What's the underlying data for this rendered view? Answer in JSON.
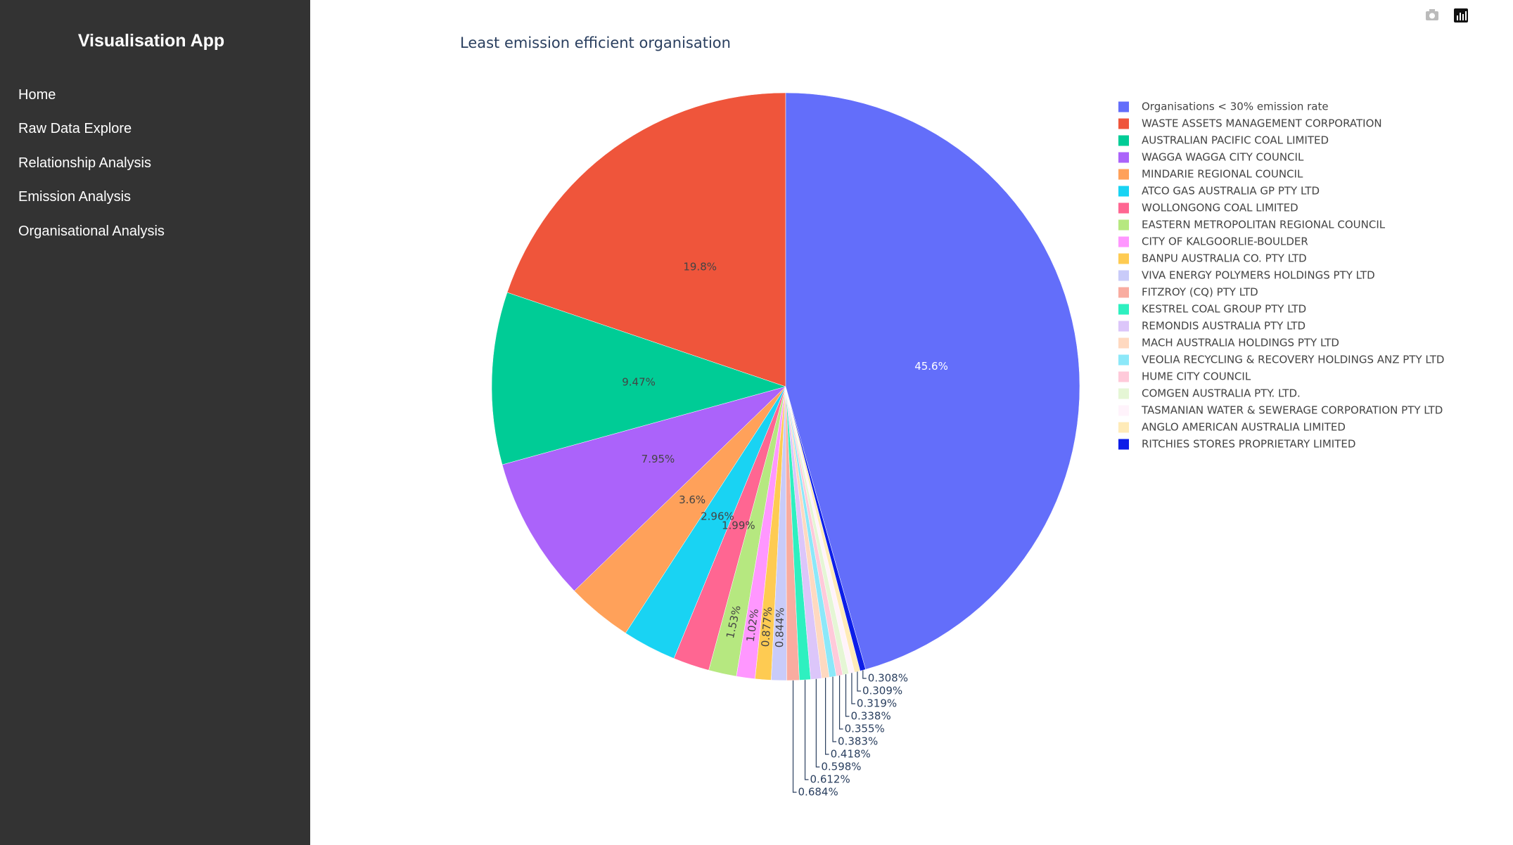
{
  "app": {
    "title": "Visualisation App",
    "nav": [
      "Home",
      "Raw Data Explore",
      "Relationship Analysis",
      "Emission Analysis",
      "Organisational Analysis"
    ]
  },
  "chart_data": {
    "type": "pie",
    "title": "Least emission efficient organisation",
    "categories": [
      "Organisations < 30% emission rate",
      "WASTE ASSETS MANAGEMENT CORPORATION",
      "AUSTRALIAN PACIFIC COAL LIMITED",
      "WAGGA WAGGA CITY COUNCIL",
      "MINDARIE REGIONAL COUNCIL",
      "ATCO GAS AUSTRALIA GP PTY LTD",
      "WOLLONGONG COAL LIMITED",
      "EASTERN METROPOLITAN REGIONAL COUNCIL",
      "CITY OF KALGOORLIE-BOULDER",
      "BANPU AUSTRALIA CO. PTY LTD",
      "VIVA ENERGY POLYMERS HOLDINGS PTY LTD",
      "FITZROY (CQ) PTY LTD",
      "KESTREL COAL GROUP PTY LTD",
      "REMONDIS AUSTRALIA PTY LTD",
      "MACH AUSTRALIA HOLDINGS PTY LTD",
      "VEOLIA RECYCLING & RECOVERY HOLDINGS ANZ PTY LTD",
      "HUME CITY COUNCIL",
      "COMGEN AUSTRALIA PTY. LTD.",
      "TASMANIAN WATER & SEWERAGE CORPORATION PTY LTD",
      "ANGLO AMERICAN AUSTRALIA LIMITED",
      "RITCHIES STORES PROPRIETARY LIMITED"
    ],
    "values": [
      45.6,
      19.8,
      9.47,
      7.95,
      3.6,
      2.96,
      1.99,
      1.53,
      1.02,
      0.877,
      0.844,
      0.684,
      0.612,
      0.598,
      0.418,
      0.383,
      0.355,
      0.338,
      0.319,
      0.309,
      0.308
    ],
    "value_labels": [
      "45.6%",
      "19.8%",
      "9.47%",
      "7.95%",
      "3.6%",
      "2.96%",
      "1.99%",
      "1.53%",
      "1.02%",
      "0.877%",
      "0.844%",
      "0.684%",
      "0.612%",
      "0.598%",
      "0.418%",
      "0.383%",
      "0.355%",
      "0.338%",
      "0.319%",
      "0.309%",
      "0.308%"
    ],
    "colors": [
      "#636efa",
      "#ef553b",
      "#00cc96",
      "#ab63fa",
      "#ffa15a",
      "#19d3f3",
      "#ff6692",
      "#b6e880",
      "#ff97ff",
      "#fecb52",
      "#c9cbf9",
      "#f9aca0",
      "#2ef0c0",
      "#dcc6fa",
      "#ffd9c0",
      "#8ce8f9",
      "#ffcada",
      "#e5f6d5",
      "#fff3fb",
      "#ffebb8",
      "#0d1ee8"
    ],
    "legend": "right"
  }
}
